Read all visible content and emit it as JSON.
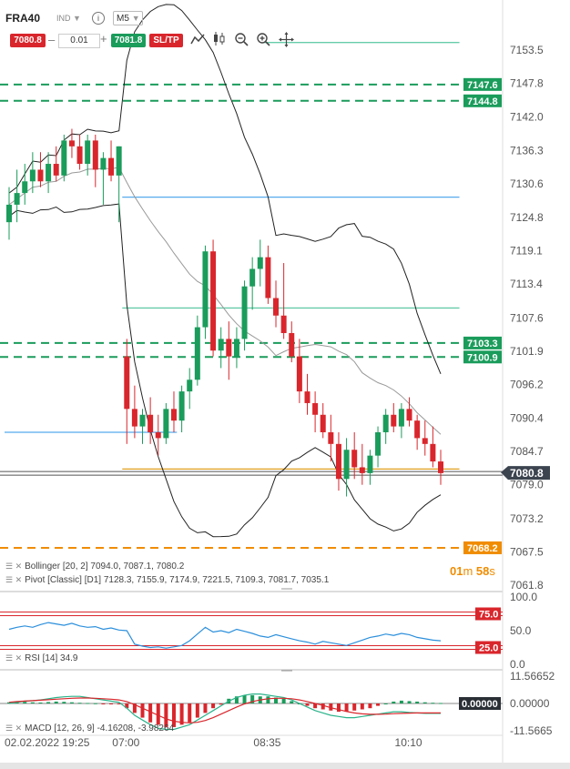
{
  "toolbar": {
    "symbol": "FRA40",
    "symbol_type": "IND",
    "timeframe": "M5",
    "sell_price": "7080.8",
    "lot_size": "0.01",
    "buy_price": "7081.8",
    "sltp_label": "SL/TP",
    "minus": "–",
    "plus": "+",
    "icons": [
      "info-icon",
      "line-chart-icon",
      "candles-icon",
      "zoom-out-icon",
      "zoom-in-icon",
      "crosshair-icon"
    ]
  },
  "countdown": {
    "min": "01",
    "sec": "58"
  },
  "chart_data": {
    "type": "candlestick",
    "price_axis_ticks": [
      "7153.5",
      "7147.8",
      "7142.0",
      "7136.3",
      "7130.6",
      "7124.8",
      "7119.1",
      "7113.4",
      "7107.6",
      "7101.9",
      "7096.2",
      "7090.4",
      "7084.7",
      "7079.0",
      "7073.2",
      "7067.5",
      "7061.8"
    ],
    "time_axis": {
      "start_label": "02.02.2022 19:25",
      "tick_labels": [
        "07:00",
        "08:35",
        "10:10"
      ]
    },
    "ylim": [
      7061.8,
      7153.5
    ],
    "horizontal_level_tags": [
      {
        "value": 7147.6,
        "label": "7147.6",
        "color": "#1a9c5b"
      },
      {
        "value": 7144.8,
        "label": "7144.8",
        "color": "#1a9c5b"
      },
      {
        "value": 7103.3,
        "label": "7103.3",
        "color": "#1a9c5b"
      },
      {
        "value": 7100.9,
        "label": "7100.9",
        "color": "#1a9c5b"
      },
      {
        "value": 7068.2,
        "label": "7068.2",
        "color": "#f08c00"
      }
    ],
    "current_price": {
      "value": 7080.8,
      "label": "7080.8"
    },
    "candles_approx": [
      [
        7124,
        7130,
        7121,
        7127
      ],
      [
        7127,
        7133,
        7124,
        7129
      ],
      [
        7129,
        7134,
        7127,
        7131
      ],
      [
        7131,
        7136,
        7129,
        7133
      ],
      [
        7133,
        7136,
        7130,
        7131
      ],
      [
        7131,
        7136,
        7129,
        7134
      ],
      [
        7134,
        7137,
        7131,
        7132
      ],
      [
        7132,
        7139,
        7131,
        7138
      ],
      [
        7138,
        7140,
        7135,
        7137
      ],
      [
        7137,
        7139,
        7133,
        7134
      ],
      [
        7134,
        7139,
        7132,
        7138
      ],
      [
        7138,
        7139,
        7130,
        7133
      ],
      [
        7133,
        7136,
        7127,
        7135
      ],
      [
        7135,
        7138,
        7131,
        7132
      ],
      [
        7132,
        7137,
        7124,
        7137
      ],
      [
        7101,
        7104,
        7086,
        7092
      ],
      [
        7092,
        7096,
        7087,
        7089
      ],
      [
        7089,
        7092,
        7086,
        7091
      ],
      [
        7091,
        7094,
        7086,
        7088
      ],
      [
        7088,
        7091,
        7084,
        7087
      ],
      [
        7087,
        7093,
        7086,
        7092
      ],
      [
        7092,
        7095,
        7088,
        7090
      ],
      [
        7090,
        7096,
        7088,
        7095
      ],
      [
        7095,
        7099,
        7092,
        7097
      ],
      [
        7097,
        7108,
        7096,
        7106
      ],
      [
        7106,
        7120,
        7104,
        7119
      ],
      [
        7119,
        7121,
        7101,
        7102
      ],
      [
        7102,
        7106,
        7099,
        7104
      ],
      [
        7104,
        7107,
        7097,
        7101
      ],
      [
        7101,
        7106,
        7099,
        7104
      ],
      [
        7104,
        7114,
        7102,
        7113
      ],
      [
        7113,
        7118,
        7109,
        7116
      ],
      [
        7116,
        7121,
        7113,
        7118
      ],
      [
        7118,
        7120,
        7110,
        7111
      ],
      [
        7111,
        7114,
        7106,
        7108
      ],
      [
        7108,
        7117,
        7104,
        7105
      ],
      [
        7105,
        7107,
        7100,
        7101
      ],
      [
        7101,
        7104,
        7093,
        7095
      ],
      [
        7095,
        7098,
        7091,
        7093
      ],
      [
        7093,
        7095,
        7088,
        7091
      ],
      [
        7091,
        7093,
        7087,
        7088
      ],
      [
        7088,
        7091,
        7083,
        7086
      ],
      [
        7086,
        7088,
        7078,
        7080
      ],
      [
        7080,
        7087,
        7077,
        7085
      ],
      [
        7085,
        7088,
        7080,
        7082
      ],
      [
        7082,
        7086,
        7079,
        7081
      ],
      [
        7081,
        7085,
        7079,
        7084
      ],
      [
        7084,
        7089,
        7082,
        7088
      ],
      [
        7088,
        7092,
        7086,
        7091
      ],
      [
        7091,
        7093,
        7088,
        7089
      ],
      [
        7089,
        7093,
        7087,
        7092
      ],
      [
        7092,
        7094,
        7089,
        7090
      ],
      [
        7090,
        7091,
        7085,
        7087
      ],
      [
        7087,
        7090,
        7084,
        7086
      ],
      [
        7086,
        7089,
        7082,
        7083
      ],
      [
        7083,
        7085,
        7079,
        7081
      ]
    ],
    "indicators": {
      "bollinger_label": "Bollinger [20, 2] 7094.0, 7087.1, 7080.2",
      "pivot_label": "Pivot [Classic] [D1] 7128.3, 7155.9, 7174.9, 7221.5, 7109.3, 7081.7, 7035.1",
      "pivot_levels_approx": [
        {
          "value": 7154.8,
          "color": "#66ccaa",
          "x_range": [
            "08:35",
            "10:10"
          ]
        },
        {
          "value": 7128.3,
          "color": "#55aaee",
          "x_range": [
            "07:00",
            "10:10"
          ]
        },
        {
          "value": 7109.3,
          "color": "#66ccaa",
          "x_range": [
            "07:00",
            "10:10"
          ]
        },
        {
          "value": 7088.0,
          "color": "#55aaee",
          "x_range": [
            "02.02.2022 19:25",
            "07:00"
          ]
        },
        {
          "value": 7081.7,
          "color": "#e0a020",
          "x_range": [
            "07:00",
            "10:10"
          ]
        }
      ]
    },
    "rsi": {
      "label": "RSI [14] 34.9",
      "axis_ticks": [
        "100.0",
        "50.0",
        "0.0"
      ],
      "levels": [
        {
          "value": 75.0,
          "label": "75.0"
        },
        {
          "value": 25.0,
          "label": "25.0"
        }
      ],
      "values_approx": [
        52,
        55,
        57,
        55,
        59,
        62,
        60,
        58,
        61,
        57,
        55,
        56,
        52,
        54,
        51,
        50,
        30,
        27,
        25,
        26,
        24,
        26,
        28,
        35,
        45,
        55,
        48,
        50,
        47,
        52,
        49,
        46,
        42,
        40,
        44,
        41,
        38,
        35,
        33,
        30,
        34,
        32,
        30,
        28,
        32,
        36,
        40,
        42,
        45,
        43,
        46,
        44,
        40,
        38,
        36,
        35
      ]
    },
    "macd": {
      "label": "MACD [12, 26, 9] -4.16208, -3.98264",
      "axis_ticks": [
        "11.56652",
        "0.00000",
        "-11.5665"
      ],
      "current_label": "0.00000",
      "histogram_approx": [
        0.5,
        0.6,
        0.7,
        0.5,
        0.4,
        0.6,
        0.8,
        0.7,
        0.5,
        0.3,
        0.2,
        0.1,
        -0.1,
        -0.2,
        -0.3,
        -2,
        -4,
        -6,
        -8,
        -9,
        -10,
        -10,
        -9,
        -8,
        -6,
        -4,
        -2,
        -0.5,
        2,
        3,
        3.5,
        3.5,
        3,
        3,
        2.5,
        2,
        1,
        0,
        -1,
        -2,
        -2.5,
        -3,
        -3.5,
        -3.5,
        -3,
        -2.5,
        -2,
        -1,
        0,
        0.8,
        1.2,
        1,
        0.8,
        0.5,
        0.3,
        0.2
      ],
      "macd_line_approx": [
        0,
        0.5,
        1,
        1.2,
        1.5,
        2,
        2.5,
        2.8,
        3,
        3,
        2.5,
        2,
        1.5,
        1,
        0.5,
        -2,
        -5,
        -7,
        -9,
        -10.5,
        -11,
        -11,
        -10,
        -9,
        -7,
        -5,
        -3,
        -1,
        1,
        2.5,
        3.5,
        4,
        4,
        3.5,
        3,
        2.5,
        1.5,
        0,
        -1.5,
        -3,
        -4,
        -5,
        -5.5,
        -6,
        -6,
        -5.5,
        -5,
        -4.5,
        -4,
        -3.5,
        -3.5,
        -3.8,
        -4,
        -4.2,
        -4.2,
        -4.2
      ],
      "signal_line_approx": [
        0.5,
        0.8,
        1,
        1.2,
        1.4,
        1.6,
        1.8,
        2,
        2.2,
        2.3,
        2.3,
        2.2,
        2,
        1.8,
        1.5,
        0.8,
        -0.5,
        -2,
        -3.5,
        -5,
        -6.5,
        -7.5,
        -8,
        -8.2,
        -8,
        -7.2,
        -6,
        -4.5,
        -3,
        -1.5,
        -0.2,
        0.8,
        1.5,
        2,
        2.2,
        2.2,
        2,
        1.5,
        0.8,
        0,
        -0.8,
        -1.8,
        -2.6,
        -3.4,
        -4,
        -4.4,
        -4.6,
        -4.6,
        -4.5,
        -4.3,
        -4.2,
        -4.1,
        -4,
        -4,
        -4,
        -4
      ]
    }
  }
}
